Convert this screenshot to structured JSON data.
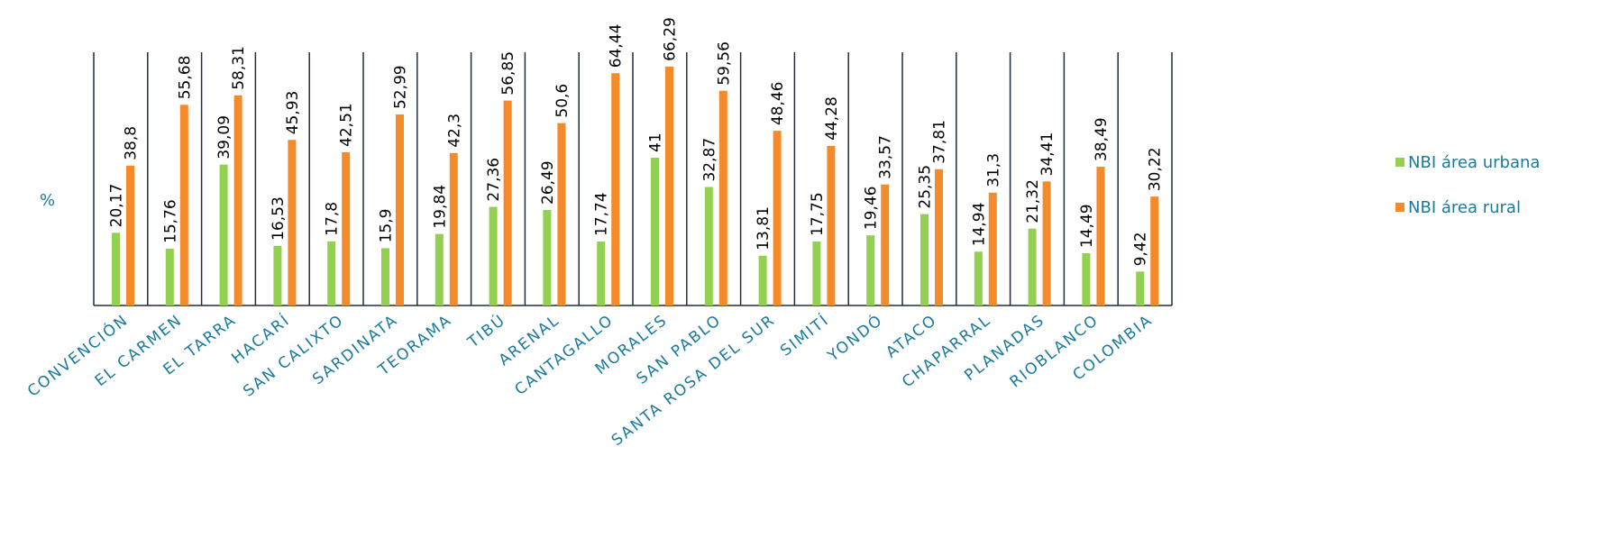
{
  "chart_data": {
    "type": "bar",
    "ylabel": "%",
    "xlabel": "",
    "categories": [
      "CONVENCIÓN",
      "EL CARMEN",
      "EL TARRA",
      "HACARÍ",
      "SAN CALIXTO",
      "SARDINATA",
      "TEORAMA",
      "TIBÚ",
      "ARENAL",
      "CANTAGALLO",
      "MORALES",
      "SAN PABLO",
      "SANTA ROSA DEL SUR",
      "SIMITÍ",
      "YONDÓ",
      "ATACO",
      "CHAPARRAL",
      "PLANADAS",
      "RIOBLANCO",
      "COLOMBIA"
    ],
    "series": [
      {
        "name": "NBI área urbana",
        "color": "#92D050",
        "values": [
          20.17,
          15.76,
          39.09,
          16.53,
          17.8,
          15.9,
          19.84,
          27.36,
          26.49,
          17.74,
          41,
          32.87,
          13.81,
          17.75,
          19.46,
          25.35,
          14.94,
          21.32,
          14.49,
          9.42
        ],
        "labels": [
          "20,17",
          "15,76",
          "39,09",
          "16,53",
          "17,8",
          "15,9",
          "19,84",
          "27,36",
          "26,49",
          "17,74",
          "41",
          "32,87",
          "13,81",
          "17,75",
          "19,46",
          "25,35",
          "14,94",
          "21,32",
          "14,49",
          "9,42"
        ]
      },
      {
        "name": "NBI área rural",
        "color": "#F58A2B",
        "values": [
          38.8,
          55.68,
          58.31,
          45.93,
          42.51,
          52.99,
          42.3,
          56.85,
          50.6,
          64.44,
          66.29,
          59.56,
          48.46,
          44.28,
          33.57,
          37.81,
          31.3,
          34.41,
          38.49,
          30.22
        ],
        "labels": [
          "38,8",
          "55,68",
          "58,31",
          "45,93",
          "42,51",
          "52,99",
          "42,3",
          "56,85",
          "50,6",
          "64,44",
          "66,29",
          "59,56",
          "48,46",
          "44,28",
          "33,57",
          "37,81",
          "31,3",
          "34,41",
          "38,49",
          "30,22"
        ]
      }
    ],
    "ylim": [
      0,
      70
    ],
    "grid": false,
    "legend": "right",
    "colors": {
      "axis": "#1F2D3D",
      "text": "#1B7A9C",
      "label": "#000000"
    }
  }
}
